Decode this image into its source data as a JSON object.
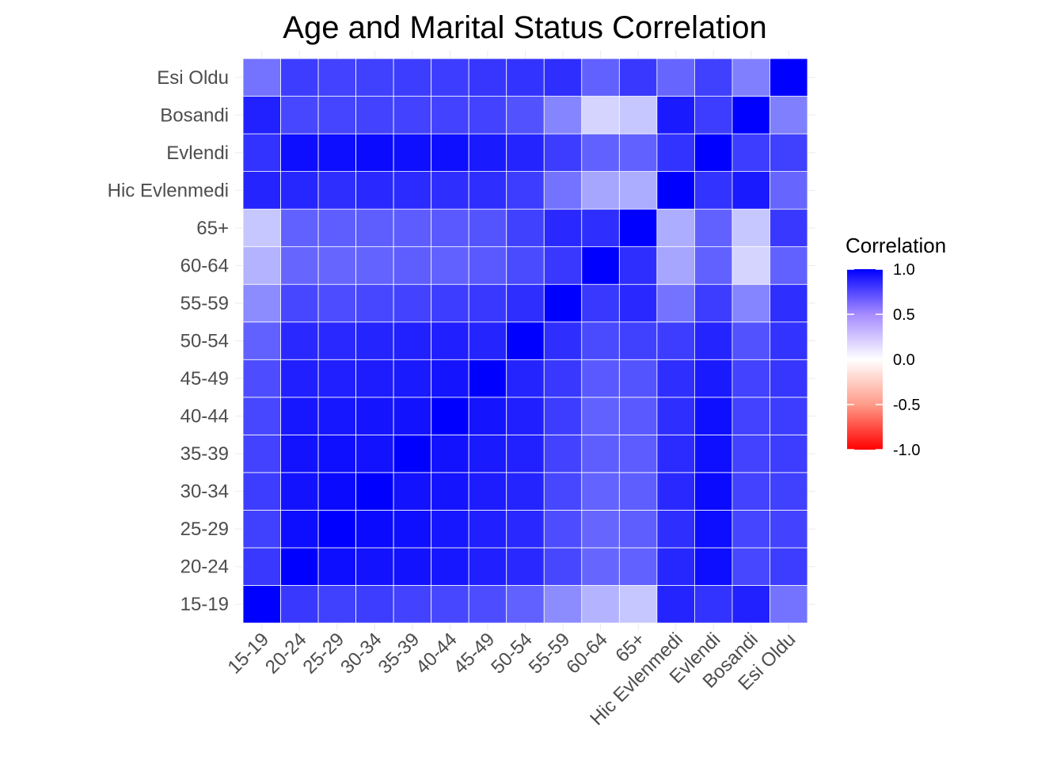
{
  "chart_data": {
    "type": "heatmap",
    "title": "Age and Marital Status Correlation",
    "xlabel": "",
    "ylabel": "",
    "categories": [
      "15-19",
      "20-24",
      "25-29",
      "30-34",
      "35-39",
      "40-44",
      "45-49",
      "50-54",
      "55-59",
      "60-64",
      "65+",
      "Hic Evlenmedi",
      "Evlendi",
      "Bosandi",
      "Esi Oldu"
    ],
    "matrix": [
      [
        1.0,
        0.78,
        0.75,
        0.76,
        0.74,
        0.72,
        0.7,
        0.62,
        0.45,
        0.3,
        0.22,
        0.86,
        0.8,
        0.87,
        0.55
      ],
      [
        0.78,
        1.0,
        0.95,
        0.93,
        0.93,
        0.91,
        0.88,
        0.84,
        0.72,
        0.6,
        0.62,
        0.85,
        0.95,
        0.72,
        0.76
      ],
      [
        0.75,
        0.95,
        1.0,
        0.96,
        0.94,
        0.91,
        0.88,
        0.84,
        0.7,
        0.6,
        0.63,
        0.82,
        0.95,
        0.73,
        0.74
      ],
      [
        0.76,
        0.93,
        0.96,
        1.0,
        0.93,
        0.92,
        0.89,
        0.86,
        0.72,
        0.61,
        0.63,
        0.84,
        0.96,
        0.74,
        0.75
      ],
      [
        0.74,
        0.93,
        0.94,
        0.93,
        1.0,
        0.93,
        0.9,
        0.87,
        0.74,
        0.63,
        0.64,
        0.83,
        0.94,
        0.74,
        0.76
      ],
      [
        0.72,
        0.91,
        0.91,
        0.92,
        0.93,
        1.0,
        0.92,
        0.88,
        0.76,
        0.62,
        0.65,
        0.82,
        0.94,
        0.74,
        0.76
      ],
      [
        0.7,
        0.88,
        0.88,
        0.89,
        0.9,
        0.92,
        1.0,
        0.86,
        0.78,
        0.65,
        0.67,
        0.82,
        0.9,
        0.74,
        0.79
      ],
      [
        0.62,
        0.84,
        0.84,
        0.86,
        0.87,
        0.88,
        0.86,
        1.0,
        0.82,
        0.71,
        0.75,
        0.76,
        0.86,
        0.68,
        0.8
      ],
      [
        0.45,
        0.72,
        0.7,
        0.72,
        0.74,
        0.76,
        0.78,
        0.82,
        1.0,
        0.78,
        0.84,
        0.55,
        0.76,
        0.48,
        0.82
      ],
      [
        0.3,
        0.6,
        0.6,
        0.61,
        0.63,
        0.62,
        0.65,
        0.71,
        0.78,
        1.0,
        0.82,
        0.35,
        0.62,
        0.17,
        0.62
      ],
      [
        0.22,
        0.62,
        0.63,
        0.63,
        0.64,
        0.65,
        0.67,
        0.75,
        0.84,
        0.82,
        1.0,
        0.32,
        0.62,
        0.22,
        0.78
      ],
      [
        0.86,
        0.85,
        0.82,
        0.84,
        0.83,
        0.82,
        0.82,
        0.76,
        0.55,
        0.35,
        0.32,
        1.0,
        0.8,
        0.9,
        0.6
      ],
      [
        0.8,
        0.95,
        0.95,
        0.96,
        0.94,
        0.94,
        0.9,
        0.86,
        0.76,
        0.62,
        0.62,
        0.8,
        1.0,
        0.76,
        0.75
      ],
      [
        0.87,
        0.72,
        0.73,
        0.74,
        0.74,
        0.74,
        0.74,
        0.68,
        0.48,
        0.17,
        0.22,
        0.9,
        0.76,
        1.0,
        0.5
      ],
      [
        0.55,
        0.76,
        0.74,
        0.75,
        0.76,
        0.76,
        0.79,
        0.8,
        0.82,
        0.62,
        0.78,
        0.6,
        0.75,
        0.5,
        1.0
      ]
    ],
    "legend": {
      "title": "Correlation",
      "ticks": [
        "1.0",
        "0.5",
        "0.0",
        "-0.5",
        "-1.0"
      ],
      "range": [
        -1,
        1
      ],
      "placement": "right"
    },
    "colors": {
      "high": "#0000ff",
      "mid": "#ffffff",
      "low": "#ff0000",
      "tile_border": "#ffffff",
      "grid": "#ebebeb"
    }
  }
}
